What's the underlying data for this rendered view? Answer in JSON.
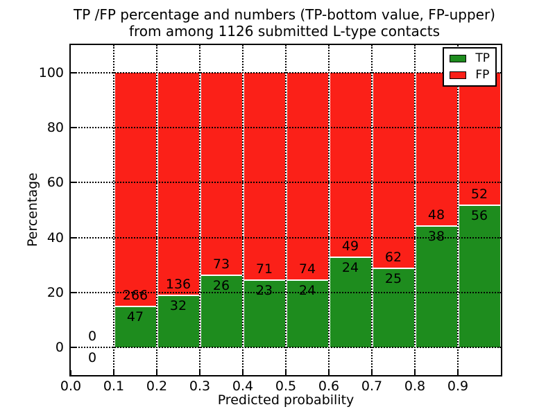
{
  "figure": {
    "title_line1": "TP /FP percentage and numbers (TP-bottom value, FP-upper)",
    "title_line2": "from among 1126 submitted L-type contacts"
  },
  "axes": {
    "xlabel": "Predicted probability",
    "ylabel": "Percentage",
    "xlim": [
      0.0,
      1.0
    ],
    "ylim": [
      -10,
      110
    ],
    "grid_style": "dotted",
    "x_ticks": [
      {
        "value": 0.0,
        "label": "0.0"
      },
      {
        "value": 0.1,
        "label": "0.1"
      },
      {
        "value": 0.2,
        "label": "0.2"
      },
      {
        "value": 0.3,
        "label": "0.3"
      },
      {
        "value": 0.4,
        "label": "0.4"
      },
      {
        "value": 0.5,
        "label": "0.5"
      },
      {
        "value": 0.6,
        "label": "0.6"
      },
      {
        "value": 0.7,
        "label": "0.7"
      },
      {
        "value": 0.8,
        "label": "0.8"
      },
      {
        "value": 0.9,
        "label": "0.9"
      }
    ],
    "y_ticks": [
      {
        "value": 0,
        "label": "0"
      },
      {
        "value": 20,
        "label": "20"
      },
      {
        "value": 40,
        "label": "40"
      },
      {
        "value": 60,
        "label": "60"
      },
      {
        "value": 80,
        "label": "80"
      },
      {
        "value": 100,
        "label": "100"
      }
    ]
  },
  "legend": {
    "position": "upper right",
    "items": [
      {
        "label": "TP",
        "color": "#1e8c1e"
      },
      {
        "label": "FP",
        "color": "#fb2018"
      }
    ]
  },
  "colors": {
    "tp": "#1e8c1e",
    "fp": "#fb2018",
    "background": "#ffffff",
    "text": "#000000",
    "grid": "#000000"
  },
  "chart_data": {
    "type": "bar",
    "stacked": true,
    "normalized_to_percent": 100,
    "title": "TP /FP percentage and numbers (TP-bottom value, FP-upper) from among 1126 submitted L-type contacts",
    "xlabel": "Predicted probability",
    "ylabel": "Percentage",
    "total_contacts": 1126,
    "bin_width": 0.1,
    "legend_position": "upper right",
    "grid": true,
    "bins": [
      {
        "range": "0.0-0.1",
        "x0": 0.0,
        "x1": 0.1,
        "tp_count": 0,
        "fp_count": 0,
        "tp_pct": 0.0,
        "fp_pct": 0.0
      },
      {
        "range": "0.1-0.2",
        "x0": 0.1,
        "x1": 0.2,
        "tp_count": 47,
        "fp_count": 266,
        "tp_pct": 15.0,
        "fp_pct": 85.0
      },
      {
        "range": "0.2-0.3",
        "x0": 0.2,
        "x1": 0.3,
        "tp_count": 32,
        "fp_count": 136,
        "tp_pct": 19.0,
        "fp_pct": 81.0
      },
      {
        "range": "0.3-0.4",
        "x0": 0.3,
        "x1": 0.4,
        "tp_count": 26,
        "fp_count": 73,
        "tp_pct": 26.3,
        "fp_pct": 73.7
      },
      {
        "range": "0.4-0.5",
        "x0": 0.4,
        "x1": 0.5,
        "tp_count": 23,
        "fp_count": 71,
        "tp_pct": 24.5,
        "fp_pct": 75.5
      },
      {
        "range": "0.5-0.6",
        "x0": 0.5,
        "x1": 0.6,
        "tp_count": 24,
        "fp_count": 74,
        "tp_pct": 24.5,
        "fp_pct": 75.5
      },
      {
        "range": "0.6-0.7",
        "x0": 0.6,
        "x1": 0.7,
        "tp_count": 24,
        "fp_count": 49,
        "tp_pct": 32.9,
        "fp_pct": 67.1
      },
      {
        "range": "0.7-0.8",
        "x0": 0.7,
        "x1": 0.8,
        "tp_count": 25,
        "fp_count": 62,
        "tp_pct": 28.7,
        "fp_pct": 71.3
      },
      {
        "range": "0.8-0.9",
        "x0": 0.8,
        "x1": 0.9,
        "tp_count": 38,
        "fp_count": 48,
        "tp_pct": 44.2,
        "fp_pct": 55.8
      },
      {
        "range": "0.9-1.0",
        "x0": 0.9,
        "x1": 1.0,
        "tp_count": 56,
        "fp_count": 52,
        "tp_pct": 51.9,
        "fp_pct": 48.1
      }
    ],
    "series": [
      {
        "name": "TP",
        "color": "#1e8c1e",
        "counts": [
          0,
          47,
          32,
          26,
          23,
          24,
          24,
          25,
          38,
          56
        ]
      },
      {
        "name": "FP",
        "color": "#fb2018",
        "counts": [
          0,
          266,
          136,
          73,
          71,
          74,
          49,
          62,
          48,
          52
        ]
      }
    ]
  }
}
